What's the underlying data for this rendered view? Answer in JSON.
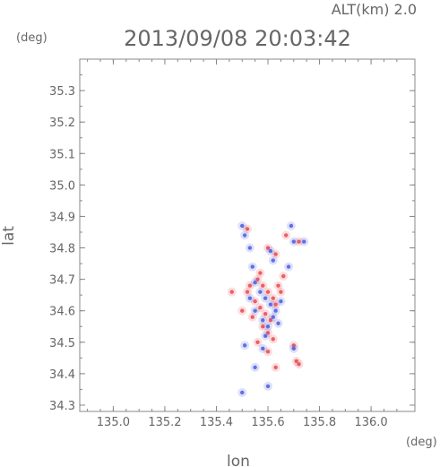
{
  "header": {
    "alt_label": "ALT(km) 2.0",
    "datetime": "2013/09/08 20:03:42",
    "y_unit": "(deg)",
    "x_unit": "(deg)"
  },
  "chart_data": {
    "type": "scatter",
    "xlabel": "lon",
    "ylabel": "lat",
    "xlim": [
      134.87,
      136.17
    ],
    "ylim": [
      34.28,
      35.4
    ],
    "x_ticks": [
      135.0,
      135.2,
      135.4,
      135.6,
      135.8,
      136.0
    ],
    "x_tick_labels": [
      "135.0",
      "135.2",
      "135.4",
      "135.6",
      "135.8",
      "136.0"
    ],
    "y_ticks": [
      34.3,
      34.4,
      34.5,
      34.6,
      34.7,
      34.8,
      34.9,
      35.0,
      35.1,
      35.2,
      35.3
    ],
    "y_tick_labels": [
      "34.3",
      "34.4",
      "34.5",
      "34.6",
      "34.7",
      "34.8",
      "34.9",
      "35.0",
      "35.1",
      "35.2",
      "35.3"
    ],
    "grid": false,
    "colors": {
      "positive": "#e8484f",
      "negative": "#4a5ae0",
      "axis": "#888888"
    },
    "series": [
      {
        "color": "#e8484f",
        "points": [
          [
            135.52,
            34.86
          ],
          [
            135.6,
            34.8
          ],
          [
            135.63,
            34.78
          ],
          [
            135.67,
            34.84
          ],
          [
            135.72,
            34.82
          ],
          [
            135.56,
            34.7
          ],
          [
            135.58,
            34.68
          ],
          [
            135.6,
            34.66
          ],
          [
            135.62,
            34.64
          ],
          [
            135.64,
            34.68
          ],
          [
            135.52,
            34.66
          ],
          [
            135.55,
            34.63
          ],
          [
            135.57,
            34.61
          ],
          [
            135.59,
            34.59
          ],
          [
            135.61,
            34.57
          ],
          [
            135.63,
            34.62
          ],
          [
            135.65,
            34.66
          ],
          [
            135.54,
            34.58
          ],
          [
            135.58,
            34.55
          ],
          [
            135.6,
            34.53
          ],
          [
            135.62,
            34.51
          ],
          [
            135.56,
            34.5
          ],
          [
            135.46,
            34.66
          ],
          [
            135.5,
            34.6
          ],
          [
            135.53,
            34.68
          ],
          [
            135.66,
            34.71
          ],
          [
            135.57,
            34.72
          ],
          [
            135.71,
            34.44
          ],
          [
            135.72,
            34.43
          ],
          [
            135.7,
            34.49
          ],
          [
            135.63,
            34.42
          ],
          [
            135.6,
            34.47
          ]
        ]
      },
      {
        "color": "#4a5ae0",
        "points": [
          [
            135.5,
            34.87
          ],
          [
            135.51,
            34.84
          ],
          [
            135.53,
            34.8
          ],
          [
            135.61,
            34.79
          ],
          [
            135.62,
            34.76
          ],
          [
            135.69,
            34.87
          ],
          [
            135.7,
            34.82
          ],
          [
            135.74,
            34.82
          ],
          [
            135.55,
            34.69
          ],
          [
            135.57,
            34.66
          ],
          [
            135.59,
            34.64
          ],
          [
            135.61,
            34.62
          ],
          [
            135.63,
            34.6
          ],
          [
            135.65,
            34.63
          ],
          [
            135.53,
            34.64
          ],
          [
            135.55,
            34.6
          ],
          [
            135.58,
            34.57
          ],
          [
            135.6,
            34.55
          ],
          [
            135.62,
            34.58
          ],
          [
            135.64,
            34.56
          ],
          [
            135.59,
            34.52
          ],
          [
            135.51,
            34.49
          ],
          [
            135.58,
            34.48
          ],
          [
            135.7,
            34.48
          ],
          [
            135.55,
            34.42
          ],
          [
            135.5,
            34.34
          ],
          [
            135.6,
            34.36
          ],
          [
            135.68,
            34.74
          ],
          [
            135.54,
            34.74
          ]
        ]
      }
    ]
  }
}
